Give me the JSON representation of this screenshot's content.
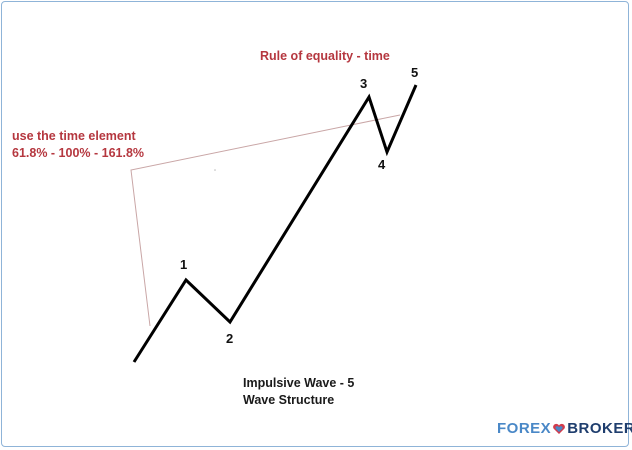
{
  "title": "Rule of equality - time",
  "annotation": {
    "line1": "use the time element",
    "line2": "61.8% - 100% - 161.8%"
  },
  "caption": {
    "line1": "Impulsive Wave - 5",
    "line2": "Wave Structure"
  },
  "wave_labels": [
    "1",
    "2",
    "3",
    "4",
    "5"
  ],
  "logo": {
    "part1": "FOREX",
    "part2": "BROKERS"
  },
  "colors": {
    "annotation_text": "#b5373f",
    "guide_lines": "#c9a6a6",
    "wave": "#000000",
    "frame_border": "#8fb4d8",
    "logo_light": "#4a88c7",
    "logo_dark": "#1f3e6e"
  }
}
